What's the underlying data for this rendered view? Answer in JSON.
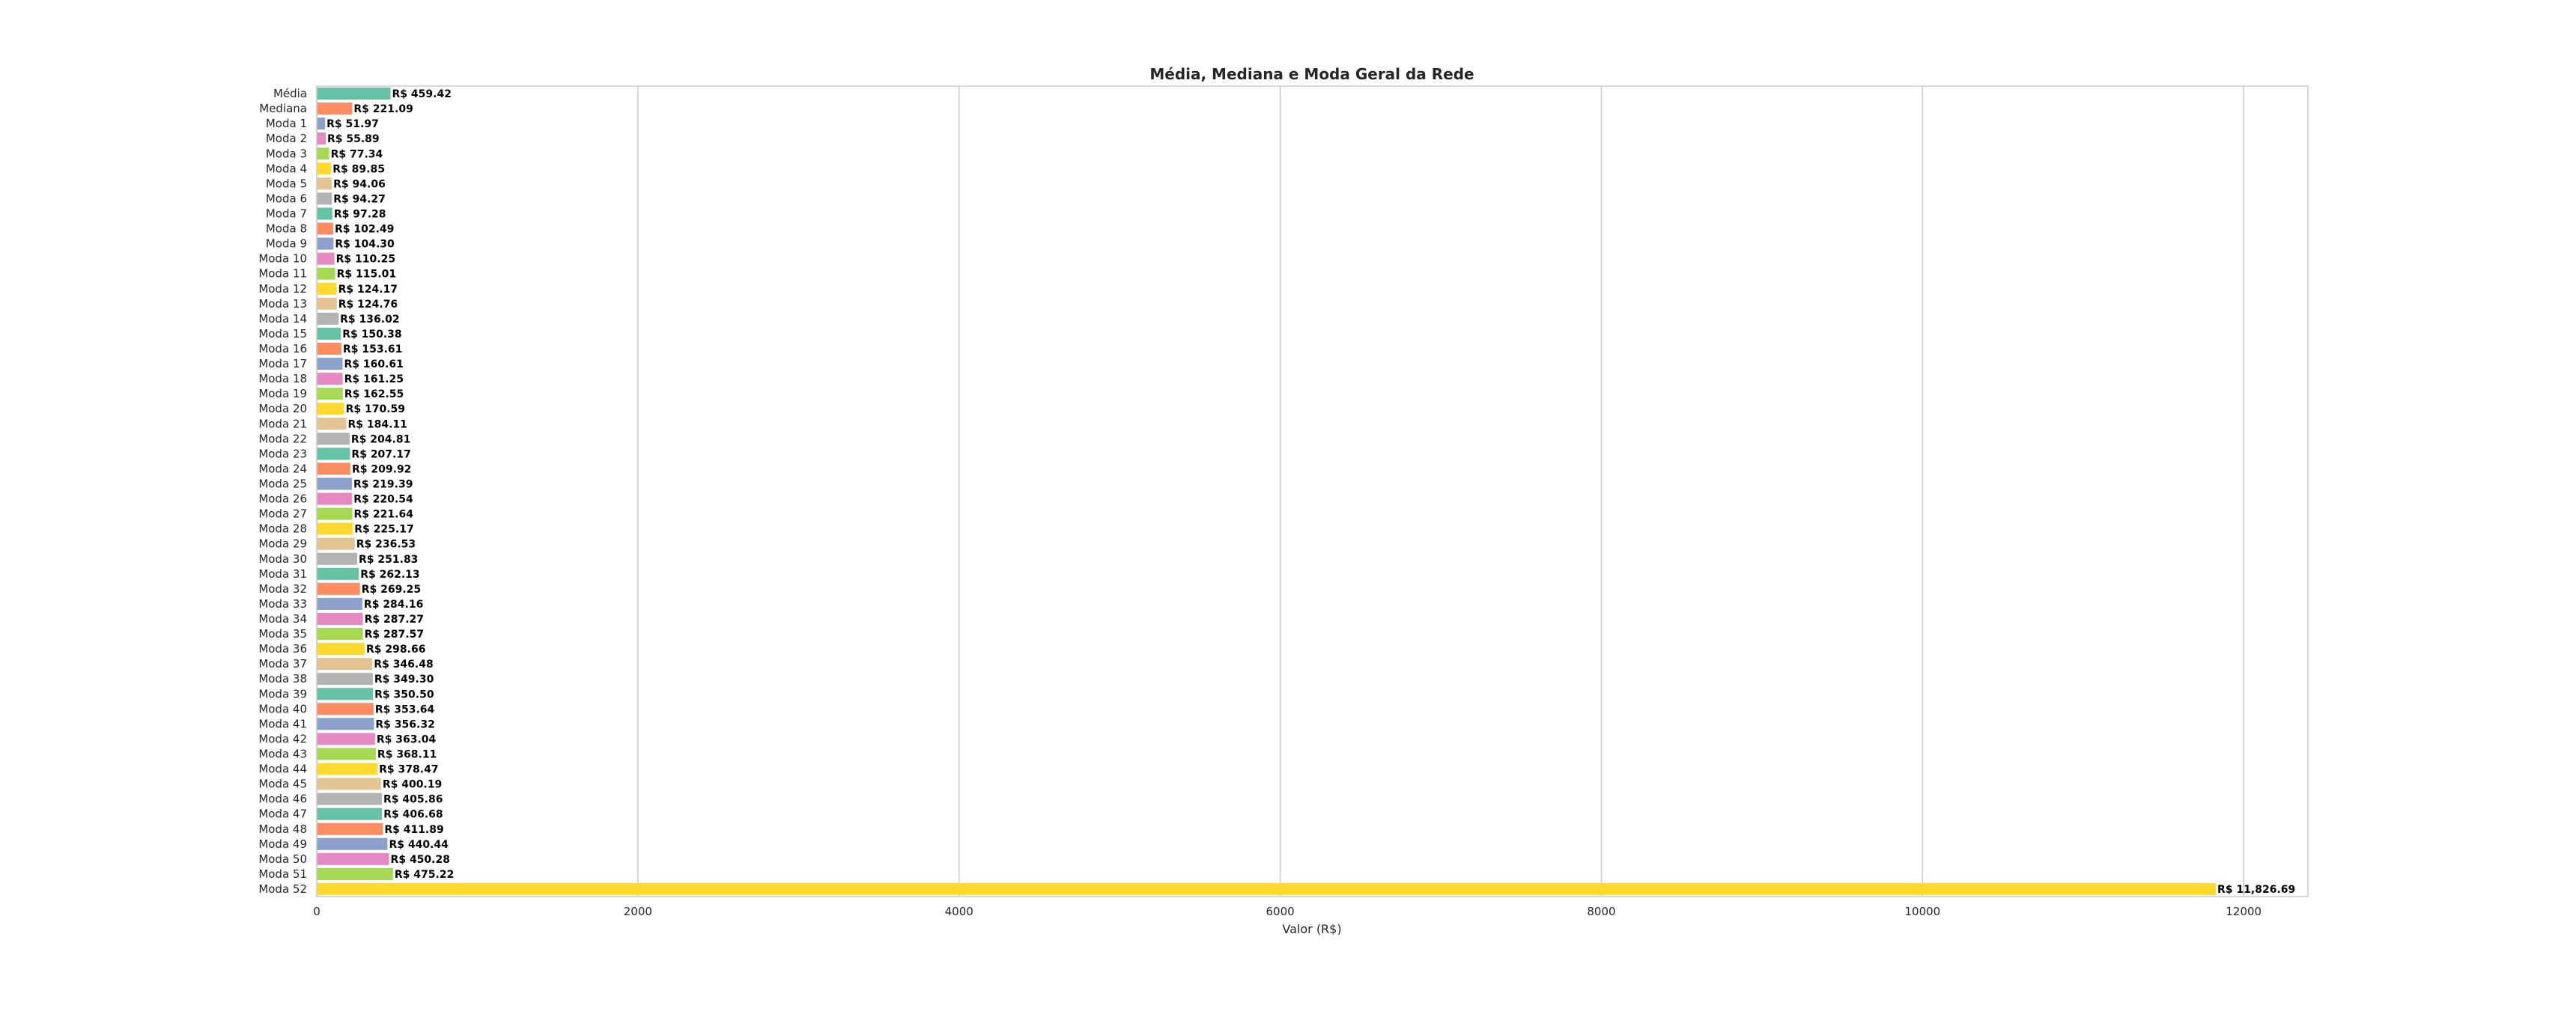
{
  "chart_data": {
    "type": "bar",
    "orientation": "horizontal",
    "title": "Média, Mediana e Moda Geral da Rede",
    "xlabel": "Valor (R$)",
    "ylabel": "",
    "xlim": [
      0,
      12400
    ],
    "xticks": [
      0,
      2000,
      4000,
      6000,
      8000,
      10000,
      12000
    ],
    "grid": "vertical",
    "palette": [
      "#66c2a5",
      "#fc8d62",
      "#8da0cb",
      "#e78ac3",
      "#a6d854",
      "#ffd92f",
      "#e5c494",
      "#b3b3b3"
    ],
    "categories": [
      "Média",
      "Mediana",
      "Moda 1",
      "Moda 2",
      "Moda 3",
      "Moda 4",
      "Moda 5",
      "Moda 6",
      "Moda 7",
      "Moda 8",
      "Moda 9",
      "Moda 10",
      "Moda 11",
      "Moda 12",
      "Moda 13",
      "Moda 14",
      "Moda 15",
      "Moda 16",
      "Moda 17",
      "Moda 18",
      "Moda 19",
      "Moda 20",
      "Moda 21",
      "Moda 22",
      "Moda 23",
      "Moda 24",
      "Moda 25",
      "Moda 26",
      "Moda 27",
      "Moda 28",
      "Moda 29",
      "Moda 30",
      "Moda 31",
      "Moda 32",
      "Moda 33",
      "Moda 34",
      "Moda 35",
      "Moda 36",
      "Moda 37",
      "Moda 38",
      "Moda 39",
      "Moda 40",
      "Moda 41",
      "Moda 42",
      "Moda 43",
      "Moda 44",
      "Moda 45",
      "Moda 46",
      "Moda 47",
      "Moda 48",
      "Moda 49",
      "Moda 50",
      "Moda 51",
      "Moda 52"
    ],
    "values": [
      459.42,
      221.09,
      51.97,
      55.89,
      77.34,
      89.85,
      94.06,
      94.27,
      97.28,
      102.49,
      104.3,
      110.25,
      115.01,
      124.17,
      124.76,
      136.02,
      150.38,
      153.61,
      160.61,
      161.25,
      162.55,
      170.59,
      184.11,
      204.81,
      207.17,
      209.92,
      219.39,
      220.54,
      221.64,
      225.17,
      236.53,
      251.83,
      262.13,
      269.25,
      284.16,
      287.27,
      287.57,
      298.66,
      346.48,
      349.3,
      350.5,
      353.64,
      356.32,
      363.04,
      368.11,
      378.47,
      400.19,
      405.86,
      406.68,
      411.89,
      440.44,
      450.28,
      475.22,
      11826.69
    ],
    "value_labels": [
      "R$ 459.42",
      "R$ 221.09",
      "R$ 51.97",
      "R$ 55.89",
      "R$ 77.34",
      "R$ 89.85",
      "R$ 94.06",
      "R$ 94.27",
      "R$ 97.28",
      "R$ 102.49",
      "R$ 104.30",
      "R$ 110.25",
      "R$ 115.01",
      "R$ 124.17",
      "R$ 124.76",
      "R$ 136.02",
      "R$ 150.38",
      "R$ 153.61",
      "R$ 160.61",
      "R$ 161.25",
      "R$ 162.55",
      "R$ 170.59",
      "R$ 184.11",
      "R$ 204.81",
      "R$ 207.17",
      "R$ 209.92",
      "R$ 219.39",
      "R$ 220.54",
      "R$ 221.64",
      "R$ 225.17",
      "R$ 236.53",
      "R$ 251.83",
      "R$ 262.13",
      "R$ 269.25",
      "R$ 284.16",
      "R$ 287.27",
      "R$ 287.57",
      "R$ 298.66",
      "R$ 346.48",
      "R$ 349.30",
      "R$ 350.50",
      "R$ 353.64",
      "R$ 356.32",
      "R$ 363.04",
      "R$ 368.11",
      "R$ 378.47",
      "R$ 400.19",
      "R$ 405.86",
      "R$ 406.68",
      "R$ 411.89",
      "R$ 440.44",
      "R$ 450.28",
      "R$ 475.22",
      "R$ 11,826.69"
    ]
  }
}
